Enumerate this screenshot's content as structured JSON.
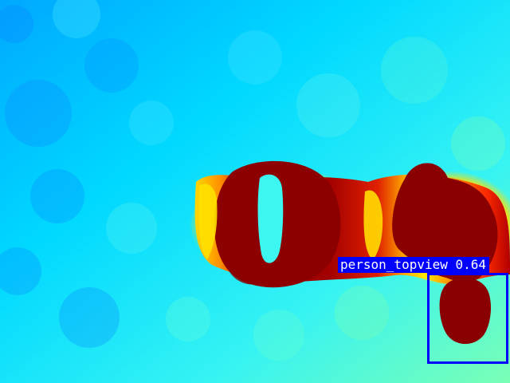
{
  "image": {
    "colormap": "jet",
    "colors": {
      "background_cyan": "#00c8ff",
      "light_cyan": "#32e3ff",
      "aqua_green": "#55ffd1",
      "yellow": "#ffe000",
      "orange": "#ff7a00",
      "red": "#e01000",
      "dark_red": "#8a0000"
    }
  },
  "detection": {
    "label": "person_topview 0.64",
    "box_color": "#0000ff",
    "label_text_color": "#ffffff"
  }
}
